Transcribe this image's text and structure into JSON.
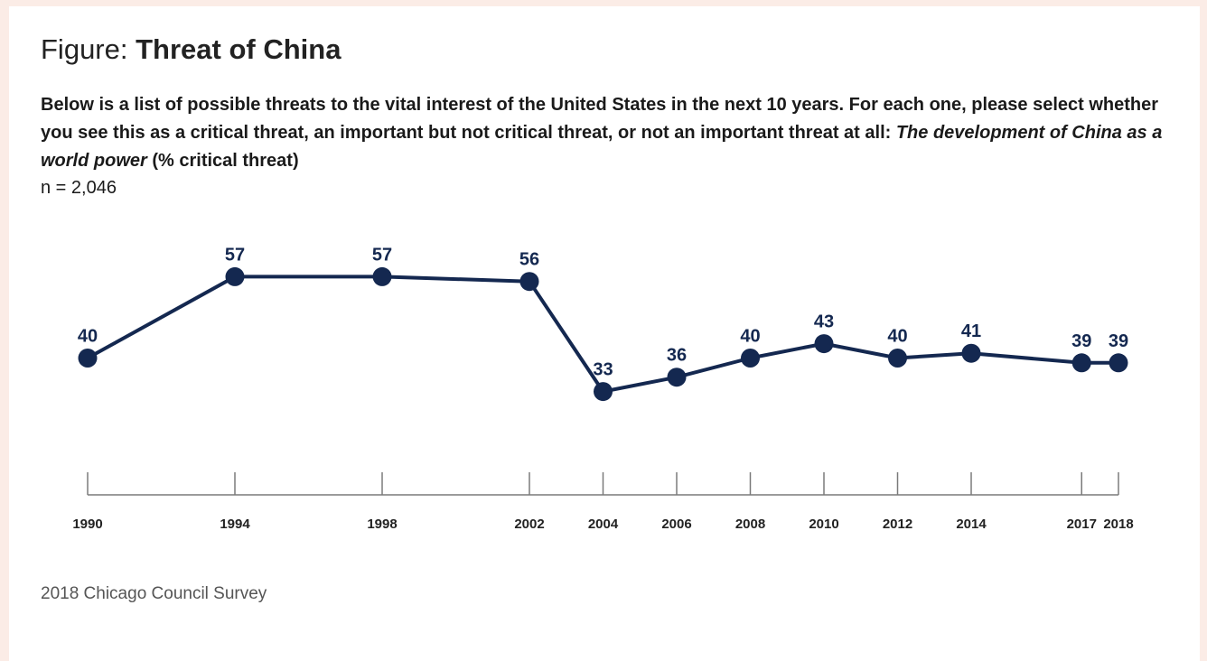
{
  "figure": {
    "title_lead": "Figure:",
    "title_main": "Threat of China",
    "question_text": "Below is a list of possible threats to the vital interest of the United States in the next 10 years. For each one, please select whether you see this as a critical threat, an important but not critical threat, or not an important threat at all:",
    "question_italic": "The development of China as a world power",
    "question_suffix": "(% critical threat)",
    "sample_size": "n = 2,046",
    "source": "2018 Chicago Council Survey"
  },
  "chart_data": {
    "type": "line",
    "title": "Threat of China",
    "x": [
      "1990",
      "1994",
      "1998",
      "2002",
      "2004",
      "2006",
      "2008",
      "2010",
      "2012",
      "2014",
      "2017",
      "2018"
    ],
    "series": [
      {
        "values": [
          40,
          57,
          57,
          56,
          33,
          36,
          40,
          43,
          40,
          41,
          39,
          39
        ]
      }
    ],
    "color": "#142850",
    "grid": false,
    "legend": "none"
  }
}
